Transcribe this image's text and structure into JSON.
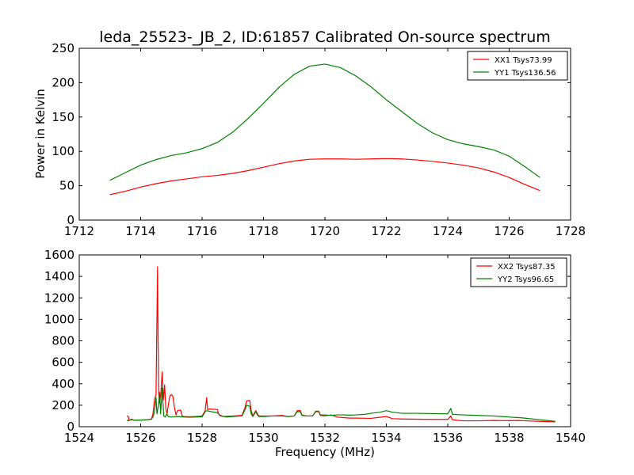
{
  "chart_data": [
    {
      "type": "line",
      "title": "leda_25523-_JB_2, ID:61857 Calibrated On-source spectrum",
      "xlabel": "",
      "ylabel": "Power in Kelvin",
      "xlim": [
        1712,
        1728
      ],
      "ylim": [
        0,
        250
      ],
      "xticks": [
        "1712",
        "1714",
        "1716",
        "1718",
        "1720",
        "1722",
        "1724",
        "1726",
        "1728"
      ],
      "yticks": [
        "0",
        "50",
        "100",
        "150",
        "200",
        "250"
      ],
      "legend_position": "top-right",
      "series": [
        {
          "name": "XX1 Tsys73.99",
          "color": "#ff0000",
          "points": [
            [
              1713.0,
              37
            ],
            [
              1713.5,
              42
            ],
            [
              1714.0,
              48
            ],
            [
              1714.5,
              53
            ],
            [
              1715.0,
              57
            ],
            [
              1715.5,
              60
            ],
            [
              1716.0,
              63
            ],
            [
              1716.5,
              65
            ],
            [
              1717.0,
              68
            ],
            [
              1717.5,
              72
            ],
            [
              1718.0,
              77
            ],
            [
              1718.5,
              82
            ],
            [
              1719.0,
              86
            ],
            [
              1719.5,
              88.5
            ],
            [
              1720.0,
              89
            ],
            [
              1720.5,
              89
            ],
            [
              1721.0,
              88.5
            ],
            [
              1721.5,
              89
            ],
            [
              1722.0,
              89.5
            ],
            [
              1722.5,
              89
            ],
            [
              1723.0,
              87.5
            ],
            [
              1723.5,
              85.5
            ],
            [
              1724.0,
              83
            ],
            [
              1724.5,
              80
            ],
            [
              1725.0,
              76
            ],
            [
              1725.5,
              70
            ],
            [
              1726.0,
              62
            ],
            [
              1726.5,
              52
            ],
            [
              1727.0,
              43
            ]
          ]
        },
        {
          "name": "YY1 Tsys136.56",
          "color": "#008000",
          "points": [
            [
              1713.0,
              58
            ],
            [
              1713.5,
              69
            ],
            [
              1714.0,
              80
            ],
            [
              1714.5,
              88
            ],
            [
              1715.0,
              94
            ],
            [
              1715.5,
              98
            ],
            [
              1716.0,
              104
            ],
            [
              1716.5,
              113
            ],
            [
              1717.0,
              128
            ],
            [
              1717.5,
              148
            ],
            [
              1718.0,
              170
            ],
            [
              1718.5,
              193
            ],
            [
              1719.0,
              212
            ],
            [
              1719.5,
              224
            ],
            [
              1720.0,
              227
            ],
            [
              1720.5,
              222
            ],
            [
              1721.0,
              210
            ],
            [
              1721.5,
              194
            ],
            [
              1722.0,
              175
            ],
            [
              1722.5,
              158
            ],
            [
              1723.0,
              141
            ],
            [
              1723.5,
              127
            ],
            [
              1724.0,
              117
            ],
            [
              1724.5,
              111
            ],
            [
              1725.0,
              107
            ],
            [
              1725.5,
              102
            ],
            [
              1726.0,
              93
            ],
            [
              1726.5,
              78
            ],
            [
              1727.0,
              62
            ]
          ]
        }
      ]
    },
    {
      "type": "line",
      "title": "",
      "xlabel": "Frequency (MHz)",
      "ylabel": "",
      "xlim": [
        1524,
        1540
      ],
      "ylim": [
        0,
        1600
      ],
      "xticks": [
        "1524",
        "1526",
        "1528",
        "1530",
        "1532",
        "1534",
        "1536",
        "1538",
        "1540"
      ],
      "yticks": [
        "0",
        "200",
        "400",
        "600",
        "800",
        "1000",
        "1200",
        "1400",
        "1600"
      ],
      "legend_position": "top-right",
      "series": [
        {
          "name": "XX2 Tsys87.35",
          "color": "#ff0000",
          "points": [
            [
              1525.55,
              100
            ],
            [
              1525.6,
              95
            ],
            [
              1525.62,
              60
            ],
            [
              1525.7,
              65
            ],
            [
              1525.8,
              60
            ],
            [
              1526.0,
              62
            ],
            [
              1526.2,
              65
            ],
            [
              1526.35,
              70
            ],
            [
              1526.4,
              120
            ],
            [
              1526.45,
              250
            ],
            [
              1526.5,
              300
            ],
            [
              1526.55,
              1490
            ],
            [
              1526.58,
              330
            ],
            [
              1526.62,
              220
            ],
            [
              1526.66,
              320
            ],
            [
              1526.7,
              510
            ],
            [
              1526.74,
              250
            ],
            [
              1526.78,
              390
            ],
            [
              1526.82,
              170
            ],
            [
              1526.86,
              120
            ],
            [
              1526.9,
              200
            ],
            [
              1526.95,
              285
            ],
            [
              1527.0,
              300
            ],
            [
              1527.05,
              280
            ],
            [
              1527.1,
              180
            ],
            [
              1527.15,
              110
            ],
            [
              1527.2,
              150
            ],
            [
              1527.3,
              155
            ],
            [
              1527.35,
              100
            ],
            [
              1527.4,
              95
            ],
            [
              1527.6,
              92
            ],
            [
              1527.8,
              95
            ],
            [
              1528.0,
              100
            ],
            [
              1528.1,
              150
            ],
            [
              1528.15,
              270
            ],
            [
              1528.18,
              160
            ],
            [
              1528.25,
              165
            ],
            [
              1528.5,
              160
            ],
            [
              1528.55,
              110
            ],
            [
              1528.7,
              95
            ],
            [
              1529.0,
              100
            ],
            [
              1529.3,
              105
            ],
            [
              1529.4,
              180
            ],
            [
              1529.45,
              240
            ],
            [
              1529.55,
              245
            ],
            [
              1529.6,
              150
            ],
            [
              1529.65,
              100
            ],
            [
              1529.75,
              150
            ],
            [
              1529.8,
              120
            ],
            [
              1529.85,
              100
            ],
            [
              1530.0,
              100
            ],
            [
              1530.3,
              100
            ],
            [
              1530.6,
              105
            ],
            [
              1530.8,
              95
            ],
            [
              1531.0,
              100
            ],
            [
              1531.1,
              150
            ],
            [
              1531.2,
              150
            ],
            [
              1531.25,
              110
            ],
            [
              1531.4,
              100
            ],
            [
              1531.6,
              100
            ],
            [
              1531.7,
              140
            ],
            [
              1531.8,
              140
            ],
            [
              1531.85,
              105
            ],
            [
              1532.0,
              100
            ],
            [
              1532.2,
              110
            ],
            [
              1532.4,
              90
            ],
            [
              1532.6,
              85
            ],
            [
              1532.8,
              80
            ],
            [
              1533.0,
              80
            ],
            [
              1533.5,
              78
            ],
            [
              1534.0,
              95
            ],
            [
              1534.2,
              75
            ],
            [
              1534.5,
              72
            ],
            [
              1535.0,
              70
            ],
            [
              1535.5,
              68
            ],
            [
              1536.0,
              68
            ],
            [
              1536.1,
              100
            ],
            [
              1536.15,
              65
            ],
            [
              1536.3,
              60
            ],
            [
              1536.5,
              55
            ],
            [
              1537.0,
              55
            ],
            [
              1537.5,
              58
            ],
            [
              1538.0,
              56
            ],
            [
              1538.3,
              58
            ],
            [
              1538.5,
              55
            ],
            [
              1539.0,
              50
            ],
            [
              1539.5,
              45
            ]
          ]
        },
        {
          "name": "YY2 Tsys96.65",
          "color": "#008000",
          "points": [
            [
              1525.55,
              60
            ],
            [
              1525.6,
              55
            ],
            [
              1525.7,
              70
            ],
            [
              1525.8,
              60
            ],
            [
              1526.0,
              62
            ],
            [
              1526.2,
              65
            ],
            [
              1526.35,
              70
            ],
            [
              1526.4,
              90
            ],
            [
              1526.45,
              140
            ],
            [
              1526.5,
              270
            ],
            [
              1526.53,
              120
            ],
            [
              1526.58,
              200
            ],
            [
              1526.62,
              320
            ],
            [
              1526.65,
              120
            ],
            [
              1526.7,
              360
            ],
            [
              1526.75,
              100
            ],
            [
              1526.8,
              90
            ],
            [
              1526.85,
              120
            ],
            [
              1526.9,
              95
            ],
            [
              1527.0,
              90
            ],
            [
              1527.2,
              95
            ],
            [
              1527.4,
              90
            ],
            [
              1527.6,
              88
            ],
            [
              1528.0,
              92
            ],
            [
              1528.1,
              140
            ],
            [
              1528.15,
              150
            ],
            [
              1528.3,
              140
            ],
            [
              1528.5,
              130
            ],
            [
              1528.6,
              100
            ],
            [
              1528.8,
              90
            ],
            [
              1529.0,
              95
            ],
            [
              1529.3,
              100
            ],
            [
              1529.4,
              160
            ],
            [
              1529.45,
              200
            ],
            [
              1529.55,
              190
            ],
            [
              1529.6,
              120
            ],
            [
              1529.65,
              95
            ],
            [
              1529.75,
              140
            ],
            [
              1529.8,
              110
            ],
            [
              1529.85,
              95
            ],
            [
              1530.0,
              95
            ],
            [
              1530.3,
              100
            ],
            [
              1530.6,
              100
            ],
            [
              1530.8,
              95
            ],
            [
              1531.0,
              100
            ],
            [
              1531.1,
              140
            ],
            [
              1531.2,
              140
            ],
            [
              1531.25,
              105
            ],
            [
              1531.4,
              100
            ],
            [
              1531.6,
              100
            ],
            [
              1531.7,
              145
            ],
            [
              1531.8,
              145
            ],
            [
              1531.85,
              110
            ],
            [
              1532.0,
              110
            ],
            [
              1532.2,
              105
            ],
            [
              1532.4,
              110
            ],
            [
              1532.6,
              110
            ],
            [
              1532.8,
              108
            ],
            [
              1533.0,
              110
            ],
            [
              1533.3,
              115
            ],
            [
              1533.5,
              125
            ],
            [
              1533.8,
              135
            ],
            [
              1534.0,
              150
            ],
            [
              1534.2,
              135
            ],
            [
              1534.5,
              125
            ],
            [
              1535.0,
              125
            ],
            [
              1535.5,
              122
            ],
            [
              1536.0,
              120
            ],
            [
              1536.1,
              170
            ],
            [
              1536.15,
              115
            ],
            [
              1536.5,
              110
            ],
            [
              1537.0,
              105
            ],
            [
              1537.5,
              100
            ],
            [
              1538.0,
              90
            ],
            [
              1538.3,
              85
            ],
            [
              1538.5,
              80
            ],
            [
              1539.0,
              65
            ],
            [
              1539.5,
              50
            ]
          ]
        }
      ]
    }
  ]
}
